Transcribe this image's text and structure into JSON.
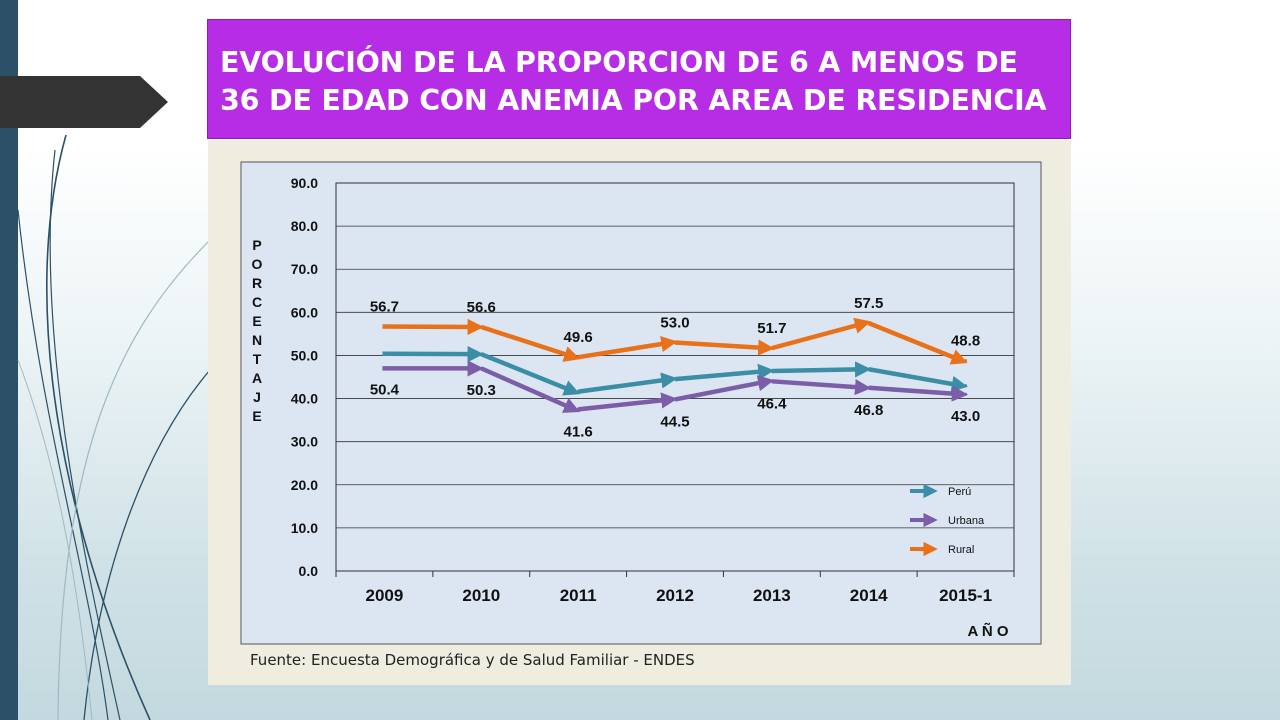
{
  "slide": {
    "title": "EVOLUCIÓN DE LA PROPORCION DE 6 A MENOS DE 36 DE EDAD CON ANEMIA POR AREA DE RESIDENCIA",
    "source": "Fuente: Encuesta Demográfica y de Salud Familiar - ENDES",
    "colors": {
      "sidebar": "#2c5067",
      "title_bg": "#b72de6",
      "plot_bg": "#dce6f2"
    }
  },
  "chart_data": {
    "type": "line",
    "title": "EVOLUCIÓN DE LA PROPORCION DE 6 A MENOS DE 36 DE EDAD CON ANEMIA POR AREA DE RESIDENCIA",
    "xlabel": "A Ñ O",
    "ylabel": "PORCENTAJE",
    "ylabel_letters": [
      "P",
      "O",
      "R",
      "C",
      "E",
      "N",
      "T",
      "A",
      "J",
      "E"
    ],
    "ylim": [
      0,
      90
    ],
    "yticks": [
      "0.0",
      "10.0",
      "20.0",
      "30.0",
      "40.0",
      "50.0",
      "60.0",
      "70.0",
      "80.0",
      "90.0"
    ],
    "categories": [
      "2009",
      "2010",
      "2011",
      "2012",
      "2013",
      "2014",
      "2015-1"
    ],
    "grid": true,
    "legend_position": "bottom-right",
    "series": [
      {
        "name": "Perú",
        "color": "#3b8ea5",
        "values": [
          50.4,
          50.3,
          41.6,
          44.5,
          46.4,
          46.8,
          43.0
        ],
        "labels": [
          "50.4",
          "50.3",
          "41.6",
          "44.5",
          "46.4",
          "46.8",
          "43.0"
        ]
      },
      {
        "name": "Urbana",
        "color": "#7b5ea7",
        "values": [
          47.0,
          47.0,
          37.5,
          39.8,
          44.0,
          42.5,
          41.0
        ],
        "labels": []
      },
      {
        "name": "Rural",
        "color": "#e8711a",
        "values": [
          56.7,
          56.6,
          49.6,
          53.0,
          51.7,
          57.5,
          48.8
        ],
        "labels": [
          "56.7",
          "56.6",
          "49.6",
          "53.0",
          "51.7",
          "57.5",
          "48.8"
        ]
      }
    ]
  }
}
